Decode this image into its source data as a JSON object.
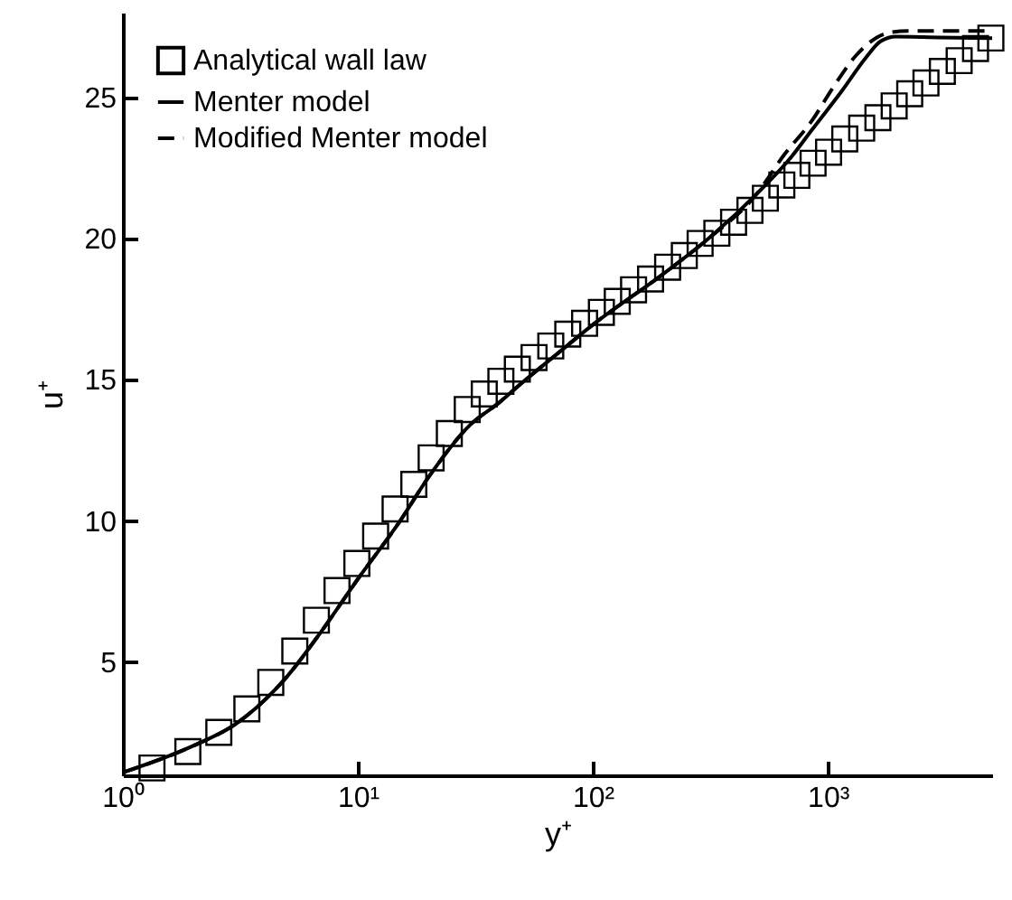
{
  "chart_data": {
    "type": "line",
    "xlabel": "y⁺",
    "ylabel": "u⁺",
    "log": "x",
    "xlim": [
      1,
      5000
    ],
    "ylim": [
      1,
      28
    ],
    "xticks": [
      {
        "value": 1,
        "label": "10⁰"
      },
      {
        "value": 10,
        "label": "10¹"
      },
      {
        "value": 100,
        "label": "10²"
      },
      {
        "value": 1000,
        "label": "10³"
      }
    ],
    "yticks": [
      5,
      10,
      15,
      20,
      25
    ],
    "grid": false,
    "legend": "top left",
    "series": [
      {
        "name": "Analytical wall law",
        "type": "scatter",
        "marker": "square",
        "color": "#000000",
        "x": [
          1.33,
          1.89,
          2.56,
          3.37,
          4.26,
          5.39,
          6.66,
          8.15,
          9.9,
          11.9,
          14.4,
          17.3,
          20.5,
          24.5,
          29.2,
          34.5,
          40.6,
          47.7,
          56.2,
          66.2,
          78.2,
          92.2,
          108.7,
          127,
          149,
          176,
          208,
          245,
          286,
          337,
          397,
          466,
          542,
          637,
          738,
          865,
          1007,
          1180,
          1393,
          1633,
          1915,
          2230,
          2615,
          3070,
          3620,
          4250,
          4940
        ],
        "values": [
          1.26,
          1.84,
          2.52,
          3.35,
          4.29,
          5.4,
          6.49,
          7.54,
          8.5,
          9.47,
          10.43,
          11.3,
          12.24,
          13.1,
          13.95,
          14.5,
          14.95,
          15.38,
          15.79,
          16.2,
          16.62,
          17.0,
          17.39,
          17.78,
          18.19,
          18.57,
          18.99,
          19.4,
          19.83,
          20.19,
          20.58,
          21.0,
          21.43,
          21.9,
          22.24,
          22.67,
          23.06,
          23.53,
          23.91,
          24.28,
          24.7,
          25.13,
          25.51,
          25.92,
          26.3,
          26.73,
          27.1
        ]
      },
      {
        "name": "Menter model",
        "line_style": "solid",
        "color": "#000000",
        "x": [
          1,
          2,
          3,
          5,
          7,
          10,
          15,
          20,
          30,
          40,
          50,
          70,
          100,
          200,
          300,
          500,
          700,
          855,
          1150,
          1450,
          1680,
          1950,
          3000,
          5000
        ],
        "values": [
          1.1,
          2.05,
          2.8,
          4.5,
          6.1,
          7.95,
          9.96,
          11.56,
          13.4,
          14.2,
          14.9,
          15.9,
          16.95,
          18.76,
          19.9,
          21.6,
          22.9,
          23.85,
          25.24,
          26.4,
          26.99,
          27.15,
          27.12,
          27.1
        ]
      },
      {
        "name": "Modified Menter model",
        "line_style": "dashed",
        "color": "#000000",
        "x": [
          1,
          2,
          3,
          5,
          7,
          10,
          15,
          20,
          30,
          40,
          50,
          70,
          100,
          200,
          300,
          500,
          656,
          855,
          1050,
          1330,
          1840,
          2200,
          5000
        ],
        "values": [
          1.1,
          2.05,
          2.8,
          4.5,
          6.1,
          7.95,
          9.96,
          11.56,
          13.4,
          14.2,
          14.9,
          15.9,
          16.95,
          18.76,
          19.9,
          21.6,
          23.0,
          24.17,
          25.34,
          26.52,
          27.3,
          27.35,
          27.35
        ]
      }
    ]
  }
}
